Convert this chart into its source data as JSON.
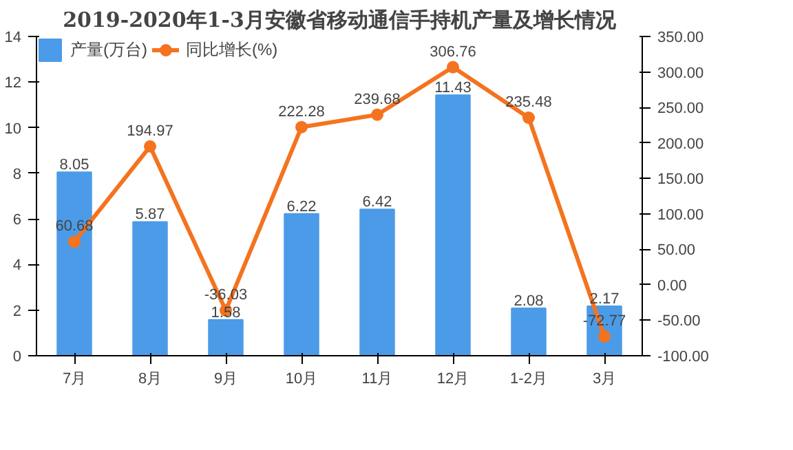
{
  "chart_data": {
    "type": "bar",
    "title": "2019-2020年1-3月安徽省移动通信手持机产量及增长情况",
    "categories": [
      "7月",
      "8月",
      "9月",
      "10月",
      "11月",
      "12月",
      "1-2月",
      "3月"
    ],
    "series": [
      {
        "name": "产量(万台)",
        "color": "#4b9be8",
        "values": [
          8.05,
          5.87,
          1.58,
          6.22,
          6.42,
          11.43,
          2.08,
          2.17
        ]
      },
      {
        "name": "同比增长(%)",
        "type": "line",
        "axis": "y2",
        "color": "#f4731f",
        "marker": "circle",
        "values": [
          60.68,
          194.97,
          -36.03,
          222.28,
          239.68,
          306.76,
          235.48,
          -72.77
        ]
      }
    ],
    "data_labels": true,
    "ylim": [
      0,
      14
    ],
    "yticks": [
      0,
      2,
      4,
      6,
      8,
      10,
      12,
      14
    ],
    "y2lim": [
      -100,
      350
    ],
    "y2ticks": [
      {
        "value": -100,
        "label": "-100.00"
      },
      {
        "value": -50,
        "label": "-50.00"
      },
      {
        "value": 0,
        "label": "0.00"
      },
      {
        "value": 50,
        "label": "50.00"
      },
      {
        "value": 100,
        "label": "100.00"
      },
      {
        "value": 150,
        "label": "150.00"
      },
      {
        "value": 200,
        "label": "200.00"
      },
      {
        "value": 250,
        "label": "250.00"
      },
      {
        "value": 300,
        "label": "300.00"
      },
      {
        "value": 350,
        "label": "350.00"
      }
    ],
    "grid": false,
    "legend": "top left"
  }
}
